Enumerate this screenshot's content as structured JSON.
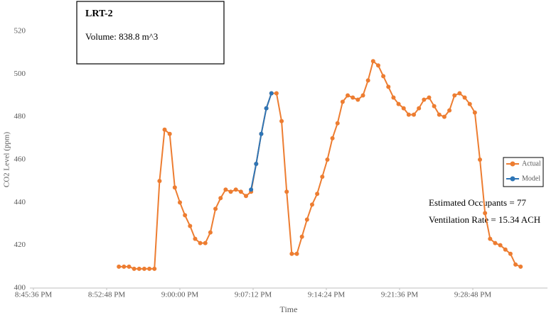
{
  "chart_data": {
    "type": "line",
    "title": "LRT-2",
    "annotations": [
      "Volume: 838.8 m^3",
      "Estimated Occupants = 77",
      "Ventilation Rate = 15.34 ACH"
    ],
    "x_label": "Time",
    "y_label": "CO2 Level (ppm)",
    "x": [
      "8:54:00 PM",
      "8:54:30 PM",
      "8:55:00 PM",
      "8:55:30 PM",
      "8:56:00 PM",
      "8:56:30 PM",
      "8:57:00 PM",
      "8:57:30 PM",
      "8:58:00 PM",
      "8:58:30 PM",
      "8:59:00 PM",
      "8:59:30 PM",
      "9:00:00 PM",
      "9:00:30 PM",
      "9:01:00 PM",
      "9:01:30 PM",
      "9:02:00 PM",
      "9:02:30 PM",
      "9:03:00 PM",
      "9:03:30 PM",
      "9:04:00 PM",
      "9:04:30 PM",
      "9:05:00 PM",
      "9:05:30 PM",
      "9:06:00 PM",
      "9:06:30 PM",
      "9:07:00 PM",
      "9:07:30 PM",
      "9:08:00 PM",
      "9:08:30 PM",
      "9:09:00 PM",
      "9:09:30 PM",
      "9:10:00 PM",
      "9:10:30 PM",
      "9:11:00 PM",
      "9:11:30 PM",
      "9:12:00 PM",
      "9:12:30 PM",
      "9:13:00 PM",
      "9:13:30 PM",
      "9:14:00 PM",
      "9:14:30 PM",
      "9:15:00 PM",
      "9:15:30 PM",
      "9:16:00 PM",
      "9:16:30 PM",
      "9:17:00 PM",
      "9:17:30 PM",
      "9:18:00 PM",
      "9:18:30 PM",
      "9:19:00 PM",
      "9:19:30 PM",
      "9:20:00 PM",
      "9:20:30 PM",
      "9:21:00 PM",
      "9:21:30 PM",
      "9:22:00 PM",
      "9:22:30 PM",
      "9:23:00 PM",
      "9:23:30 PM",
      "9:24:00 PM",
      "9:24:30 PM",
      "9:25:00 PM",
      "9:25:30 PM",
      "9:26:00 PM",
      "9:26:30 PM",
      "9:27:00 PM",
      "9:27:30 PM",
      "9:28:00 PM",
      "9:28:30 PM",
      "9:29:00 PM",
      "9:29:30 PM",
      "9:30:00 PM",
      "9:30:30 PM",
      "9:31:00 PM",
      "9:31:30 PM",
      "9:32:00 PM",
      "9:32:30 PM",
      "9:33:00 PM",
      "9:33:30 PM"
    ],
    "series": [
      {
        "name": "Actual",
        "color": "#ed7d31",
        "values": [
          410,
          410,
          410,
          409,
          409,
          409,
          409,
          409,
          450,
          474,
          472,
          447,
          440,
          434,
          429,
          423,
          421,
          421,
          426,
          437,
          442,
          446,
          445,
          446,
          445,
          443,
          445,
          458,
          472,
          484,
          491,
          491,
          478,
          445,
          416,
          416,
          424,
          432,
          439,
          444,
          452,
          460,
          470,
          477,
          487,
          490,
          489,
          488,
          490,
          497,
          506,
          504,
          499,
          494,
          489,
          486,
          484,
          481,
          481,
          484,
          488,
          489,
          485,
          481,
          480,
          483,
          490,
          491,
          489,
          486,
          482,
          460,
          435,
          423,
          421,
          420,
          418,
          416,
          411,
          410
        ]
      },
      {
        "name": "Model",
        "color": "#2e75b6",
        "values": [
          null,
          null,
          null,
          null,
          null,
          null,
          null,
          null,
          null,
          null,
          null,
          null,
          null,
          null,
          null,
          null,
          null,
          null,
          null,
          null,
          null,
          null,
          null,
          null,
          null,
          null,
          446,
          458,
          472,
          484,
          491,
          null,
          null,
          null,
          null,
          null,
          null,
          null,
          null,
          null,
          null,
          null,
          null,
          null,
          null,
          null,
          null,
          null,
          null,
          null,
          null,
          null,
          null,
          null,
          null,
          null,
          null,
          null,
          null,
          null,
          null,
          null,
          null,
          null,
          null,
          null,
          null,
          null,
          null,
          null,
          null,
          null,
          null,
          null,
          null,
          null,
          null,
          null,
          null,
          null
        ]
      }
    ],
    "xlim": [
      "8:45:36 PM",
      "9:36:00 PM"
    ],
    "xticks": [
      "8:45:36 PM",
      "8:52:48 PM",
      "9:00:00 PM",
      "9:07:12 PM",
      "9:14:24 PM",
      "9:21:36 PM",
      "9:28:48 PM"
    ],
    "ylim": [
      400,
      520
    ],
    "yticks": [
      400,
      420,
      440,
      460,
      480,
      500,
      520
    ],
    "grid": false,
    "legend": "right"
  }
}
